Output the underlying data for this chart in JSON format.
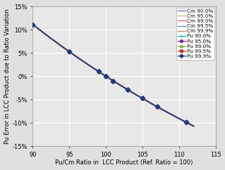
{
  "xlabel": "Pu/Cm Ratio in  LCC Product (Ref. Ratio = 100)",
  "ylabel": "Pu Error in LCC Product due to Ratio Variation",
  "xlim": [
    90,
    115
  ],
  "ylim": [
    -0.15,
    0.15
  ],
  "xticks": [
    90,
    95,
    100,
    105,
    110,
    115
  ],
  "yticks": [
    -0.15,
    -0.1,
    -0.05,
    0.0,
    0.05,
    0.1,
    0.15
  ],
  "ytick_labels": [
    "-15%",
    "-10%",
    "-5%",
    "0%",
    "5%",
    "10%",
    "15%"
  ],
  "xtick_labels": [
    "90",
    "95",
    "100",
    "105",
    "110",
    "115"
  ],
  "x_points": [
    90,
    95,
    99,
    100,
    101,
    103,
    105,
    107,
    111
  ],
  "series": [
    {
      "label": "Cm 90.0%",
      "color": "#7474c0",
      "marker": null,
      "linestyle": "-",
      "lw": 1.0
    },
    {
      "label": "Cm 95.0%",
      "color": "#c8c870",
      "marker": null,
      "linestyle": "-",
      "lw": 1.0
    },
    {
      "label": "Cm 99.0%",
      "color": "#e07070",
      "marker": null,
      "linestyle": "-",
      "lw": 1.0
    },
    {
      "label": "Cm 99.5%",
      "color": "#6090c8",
      "marker": null,
      "linestyle": "-",
      "lw": 1.5
    },
    {
      "label": "Cm 99.9%",
      "color": "#d09050",
      "marker": null,
      "linestyle": "-",
      "lw": 1.5
    },
    {
      "label": "Pu 90.0%",
      "color": "#00bcd4",
      "marker": "+",
      "linestyle": "-",
      "lw": 1.0
    },
    {
      "label": "Pu 95.0%",
      "color": "#7b2d8b",
      "marker": "o",
      "linestyle": "-",
      "lw": 1.0
    },
    {
      "label": "Pu 99.0%",
      "color": "#7cb342",
      "marker": "^",
      "linestyle": "-",
      "lw": 1.0
    },
    {
      "label": "Pu 99.5%",
      "color": "#c0392b",
      "marker": "s",
      "linestyle": "-",
      "lw": 1.0
    },
    {
      "label": "Pu 99.9%",
      "color": "#1a3a8a",
      "marker": "D",
      "linestyle": "-",
      "lw": 1.0
    }
  ],
  "plot_bg": "#e8e8e8",
  "fig_bg": "#e0e0e0",
  "grid_color": "#ffffff",
  "font_size": 6.0,
  "legend_font_size": 5.2,
  "tick_font_size": 6.0
}
